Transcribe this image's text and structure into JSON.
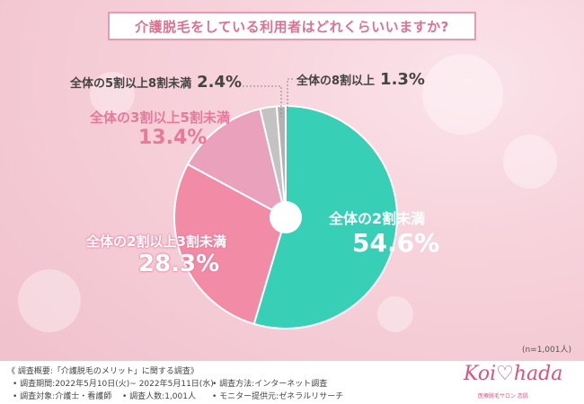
{
  "title": "介護脱毛をしている利用者はどれくらいいますか?",
  "sample_size": "(n=1,001人)",
  "colors": {
    "slice_a": "#37cfb5",
    "slice_b": "#f28ba6",
    "slice_c": "#eaa1bb",
    "slice_d": "#c3c3c3",
    "slice_e": "#b2b2b2",
    "label_dark": "#444444",
    "label_pink": "#e8799a"
  },
  "chart_data": {
    "type": "pie",
    "title": "介護脱毛をしている利用者はどれくらいいますか?",
    "categories": [
      "全体の2割未満",
      "全体の2割以上3割未満",
      "全体の3割以上5割未満",
      "全体の5割以上8割未満",
      "全体の8割以上"
    ],
    "values": [
      54.6,
      28.3,
      13.4,
      2.4,
      1.3
    ],
    "value_labels": [
      "54.6%",
      "28.3%",
      "13.4%",
      "2.4%",
      "1.3%"
    ],
    "start_angle_deg": 0,
    "direction": "clockwise",
    "donut_hole": true
  },
  "footer": {
    "heading": "《 調査概要:「介護脱毛のメリット」に関する調査》",
    "period": "• 調査期間:2022年5月10日(火)~ 2022年5月11日(水)",
    "method": "• 調査方法:インターネット調査",
    "target": "• 調査対象:介護士・看護師",
    "count": "• 調査人数:1,001人",
    "provider": "• モニター提供元:ゼネラルリサーチ"
  },
  "logo": {
    "text": "Koi♡hada",
    "sub": "医療脱毛サロン 恋肌"
  }
}
